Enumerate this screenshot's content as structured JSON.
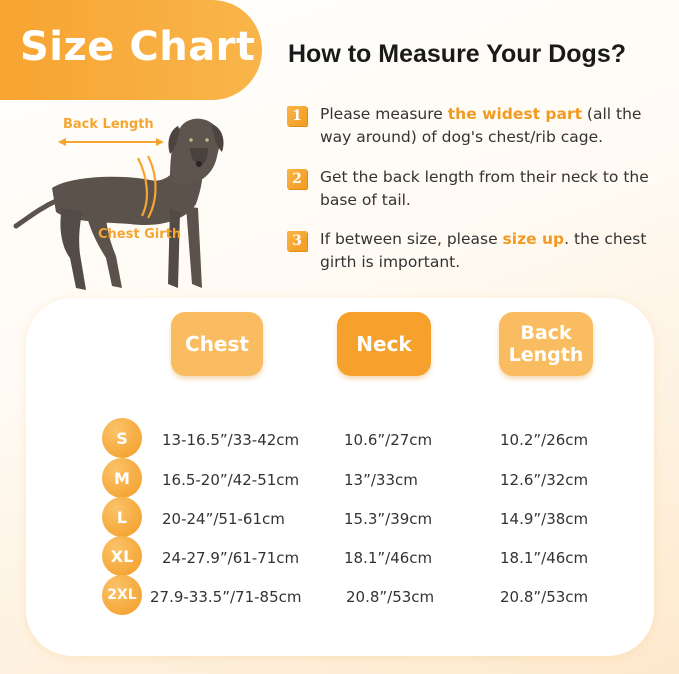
{
  "banner": {
    "title": "Size Chart"
  },
  "heading": "How to Measure Your Dogs?",
  "dog_labels": {
    "back_length": "Back Length",
    "chest_girth": "Chest Girth"
  },
  "steps": [
    {
      "number": "1",
      "pre": "Please measure ",
      "highlight": "the widest part",
      "post": " (all the way around) of dog's chest/rib cage."
    },
    {
      "number": "2",
      "pre": "Get the back length from their neck to the base of tail.",
      "highlight": "",
      "post": ""
    },
    {
      "number": "3",
      "pre": "If between size, please ",
      "highlight": "size up",
      "post": ". the chest girth is  important."
    }
  ],
  "table": {
    "headers": {
      "chest": "Chest",
      "neck": "Neck",
      "back_line1": "Back",
      "back_line2": "Length"
    },
    "rows": [
      {
        "size": "S",
        "chest": "13-16.5”/33-42cm",
        "neck": "10.6”/27cm",
        "back": "10.2”/26cm"
      },
      {
        "size": "M",
        "chest": "16.5-20”/42-51cm",
        "neck": "13”/33cm",
        "back": "12.6”/32cm"
      },
      {
        "size": "L",
        "chest": "20-24”/51-61cm",
        "neck": "15.3”/39cm",
        "back": "14.9”/38cm"
      },
      {
        "size": "XL",
        "chest": "24-27.9”/61-71cm",
        "neck": "18.1”/46cm",
        "back": "18.1”/46cm"
      },
      {
        "size": "2XL",
        "chest": "27.9-33.5”/71-85cm",
        "neck": "20.8”/53cm",
        "back": "20.8”/53cm"
      }
    ]
  },
  "colors": {
    "accent": "#f6a12c",
    "accent_light": "#fabc60",
    "text": "#333333",
    "dog": "#5a524b"
  }
}
